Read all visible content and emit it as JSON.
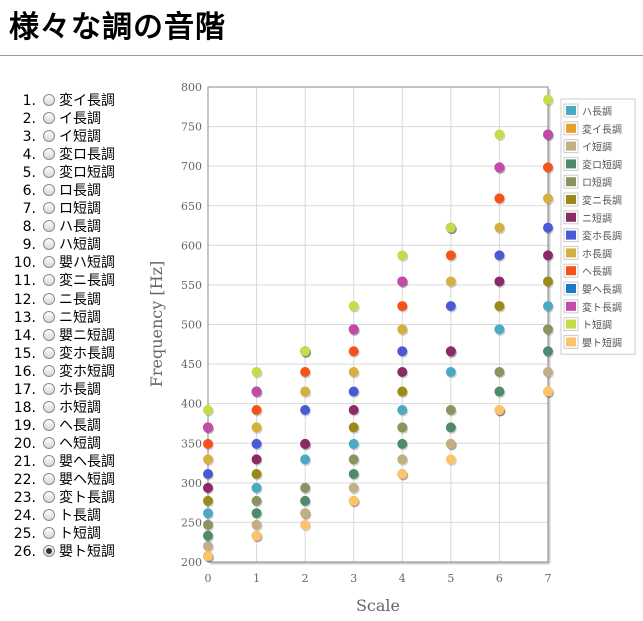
{
  "page": {
    "title": "様々な調の音階"
  },
  "scale_list": {
    "items": [
      {
        "n": "1.",
        "label": "変イ長調"
      },
      {
        "n": "2.",
        "label": "イ長調"
      },
      {
        "n": "3.",
        "label": "イ短調"
      },
      {
        "n": "4.",
        "label": "変ロ長調"
      },
      {
        "n": "5.",
        "label": "変ロ短調"
      },
      {
        "n": "6.",
        "label": "ロ長調"
      },
      {
        "n": "7.",
        "label": "ロ短調"
      },
      {
        "n": "8.",
        "label": "ハ長調"
      },
      {
        "n": "9.",
        "label": "ハ短調"
      },
      {
        "n": "10.",
        "label": "嬰ハ短調"
      },
      {
        "n": "11.",
        "label": "変ニ長調"
      },
      {
        "n": "12.",
        "label": "ニ長調"
      },
      {
        "n": "13.",
        "label": "ニ短調"
      },
      {
        "n": "14.",
        "label": "嬰ニ短調"
      },
      {
        "n": "15.",
        "label": "変ホ長調"
      },
      {
        "n": "16.",
        "label": "変ホ短調"
      },
      {
        "n": "17.",
        "label": "ホ長調"
      },
      {
        "n": "18.",
        "label": "ホ短調"
      },
      {
        "n": "19.",
        "label": "ヘ長調"
      },
      {
        "n": "20.",
        "label": "ヘ短調"
      },
      {
        "n": "21.",
        "label": "嬰ヘ長調"
      },
      {
        "n": "22.",
        "label": "嬰ヘ短調"
      },
      {
        "n": "23.",
        "label": "変ト長調"
      },
      {
        "n": "24.",
        "label": "ト長調"
      },
      {
        "n": "25.",
        "label": "ト短調"
      },
      {
        "n": "26.",
        "label": "嬰ト短調"
      }
    ],
    "selected_index": 25
  },
  "chart_data": {
    "type": "scatter",
    "xlabel": "Scale",
    "ylabel": "Frequency [Hz]",
    "xlim": [
      0,
      7
    ],
    "ylim": [
      200,
      800
    ],
    "xticks": [
      0,
      1,
      2,
      3,
      4,
      5,
      6,
      7
    ],
    "yticks": [
      200,
      250,
      300,
      350,
      400,
      450,
      500,
      550,
      600,
      650,
      700,
      750,
      800
    ],
    "grid": true,
    "legend_position": "top-right",
    "series": [
      {
        "name": "ハ長調",
        "color": "#4aaac4",
        "values": [
          261.63,
          293.66,
          329.63,
          349.23,
          392.0,
          440.0,
          493.88,
          523.25
        ]
      },
      {
        "name": "変イ長調",
        "color": "#e6a02c",
        "values": [
          207.65,
          233.08,
          261.63,
          277.18,
          311.13,
          349.23,
          392.0,
          415.3
        ]
      },
      {
        "name": "イ短調",
        "color": "#c4ae86",
        "values": [
          220.0,
          246.94,
          261.63,
          293.66,
          329.63,
          349.23,
          392.0,
          440.0
        ]
      },
      {
        "name": "変ロ短調",
        "color": "#4e8a6c",
        "values": [
          233.08,
          261.63,
          277.18,
          311.13,
          349.23,
          369.99,
          415.3,
          466.16
        ]
      },
      {
        "name": "ロ短調",
        "color": "#8a9460",
        "values": [
          246.94,
          277.18,
          293.66,
          329.63,
          369.99,
          392.0,
          440.0,
          493.88
        ]
      },
      {
        "name": "変ニ長調",
        "color": "#9a8a1a",
        "values": [
          277.18,
          311.13,
          349.23,
          369.99,
          415.3,
          466.16,
          523.25,
          554.37
        ]
      },
      {
        "name": "ニ短調",
        "color": "#8a2a66",
        "values": [
          293.66,
          329.63,
          349.23,
          392.0,
          440.0,
          466.16,
          554.37,
          587.33
        ]
      },
      {
        "name": "変ホ長調",
        "color": "#4a5ad4",
        "values": [
          311.13,
          349.23,
          392.0,
          415.3,
          466.16,
          523.25,
          587.33,
          622.25
        ]
      },
      {
        "name": "ホ長調",
        "color": "#d4b040",
        "values": [
          329.63,
          369.99,
          415.3,
          440.0,
          493.88,
          554.37,
          622.25,
          659.25
        ]
      },
      {
        "name": "ヘ長調",
        "color": "#f4541a",
        "values": [
          349.23,
          392.0,
          440.0,
          466.16,
          523.25,
          587.33,
          659.25,
          698.46
        ]
      },
      {
        "name": "嬰ヘ長調",
        "color": "#1a7ac4",
        "values": [
          369.99,
          415.3,
          466.16,
          493.88,
          554.37,
          622.25,
          698.46,
          739.99
        ]
      },
      {
        "name": "変ト長調",
        "color": "#c44aaa",
        "values": [
          369.99,
          415.3,
          466.16,
          493.88,
          554.37,
          622.25,
          698.46,
          739.99
        ]
      },
      {
        "name": "ト短調",
        "color": "#c4dc4a",
        "values": [
          392.0,
          440.0,
          466.16,
          523.25,
          587.33,
          622.25,
          739.99,
          783.99
        ]
      },
      {
        "name": "嬰ト短調",
        "color": "#fcc46a",
        "values": [
          207.65,
          233.08,
          246.94,
          277.18,
          311.13,
          329.63,
          392.0,
          415.3
        ]
      }
    ]
  }
}
